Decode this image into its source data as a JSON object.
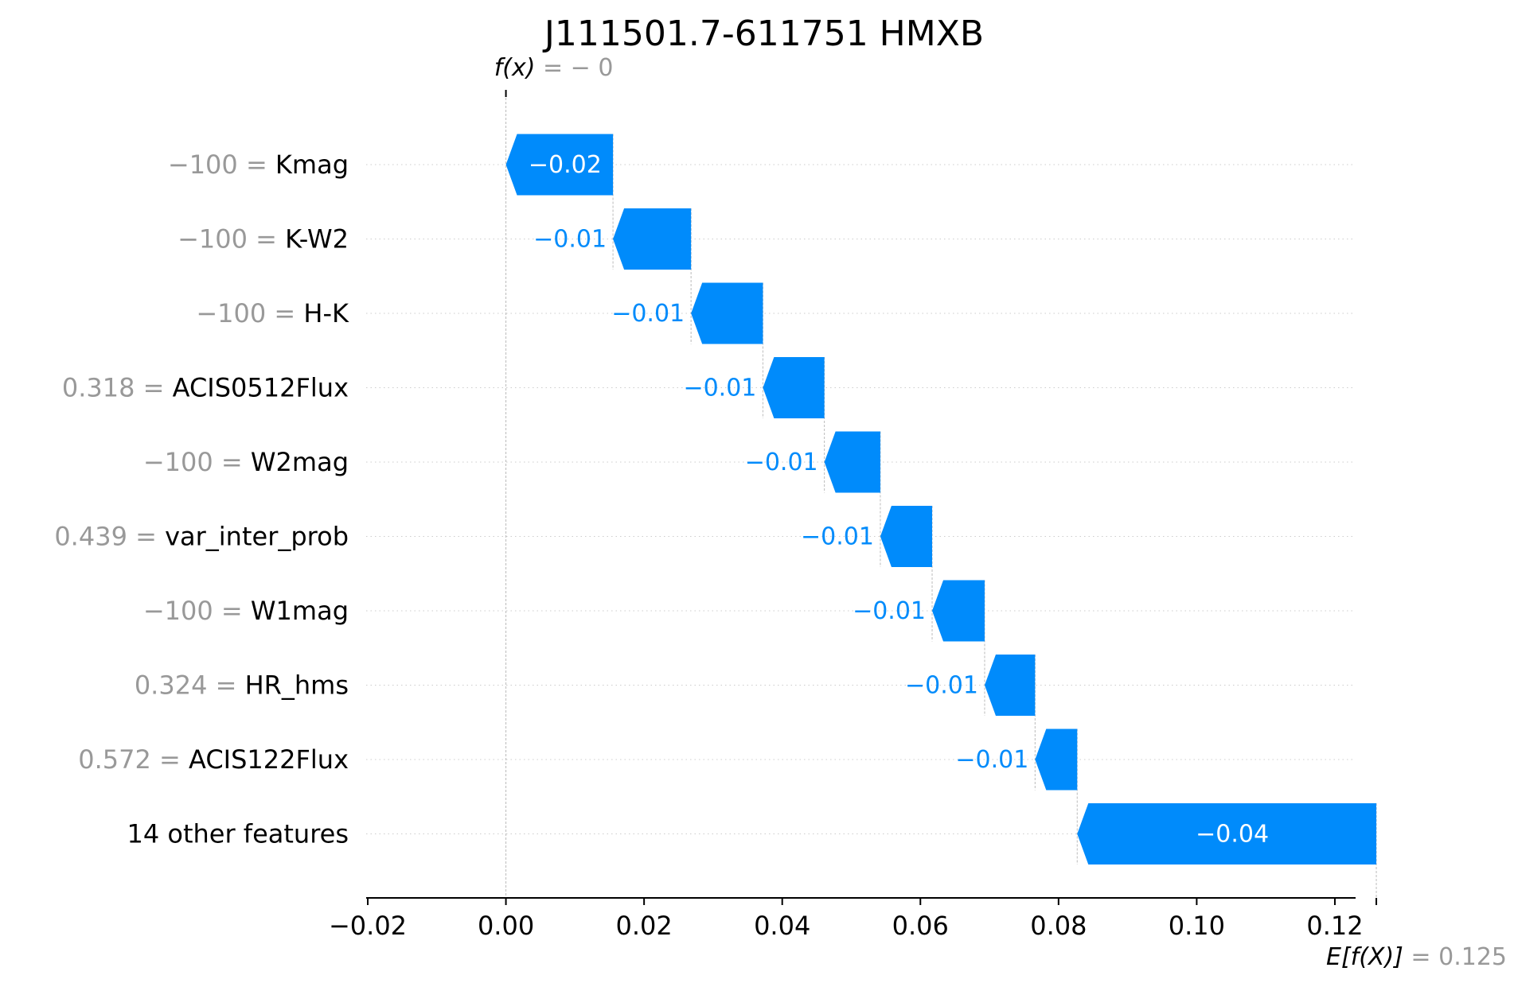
{
  "chart_data": {
    "type": "bar",
    "subtype": "waterfall",
    "title": "J111501.7-611751 HMXB",
    "fx_label": "f(x)",
    "fx_value": "− 0",
    "efx_label": "E[f(X)]",
    "efx_value": "0.125",
    "base_value": 0.125,
    "final_value": 0,
    "xlim": [
      -0.02,
      0.123
    ],
    "grid": false,
    "xticks": [
      -0.02,
      0.0,
      0.02,
      0.04,
      0.06,
      0.08,
      0.1,
      0.12
    ],
    "xtick_labels": [
      "−0.02",
      "0.00",
      "0.02",
      "0.04",
      "0.06",
      "0.08",
      "0.10",
      "0.12"
    ],
    "bar_color": "#008bfb",
    "features": [
      {
        "value": "−100",
        "name": "Kmag",
        "contribution": -0.0155,
        "label": "−0.02"
      },
      {
        "value": "−100",
        "name": "K-W2",
        "contribution": -0.0113,
        "label": "−0.01"
      },
      {
        "value": "−100",
        "name": "H-K",
        "contribution": -0.0104,
        "label": "−0.01"
      },
      {
        "value": "0.318",
        "name": "ACIS0512Flux",
        "contribution": -0.0089,
        "label": "−0.01"
      },
      {
        "value": "−100",
        "name": "W2mag",
        "contribution": -0.0081,
        "label": "−0.01"
      },
      {
        "value": "0.439",
        "name": "var_inter_prob",
        "contribution": -0.0075,
        "label": "−0.01"
      },
      {
        "value": "−100",
        "name": "W1mag",
        "contribution": -0.0076,
        "label": "−0.01"
      },
      {
        "value": "0.324",
        "name": "HR_hms",
        "contribution": -0.0073,
        "label": "−0.01"
      },
      {
        "value": "0.572",
        "name": "ACIS122Flux",
        "contribution": -0.0061,
        "label": "−0.01"
      },
      {
        "value": "",
        "name": "14 other features",
        "contribution": -0.0433,
        "label": "−0.04"
      }
    ]
  }
}
